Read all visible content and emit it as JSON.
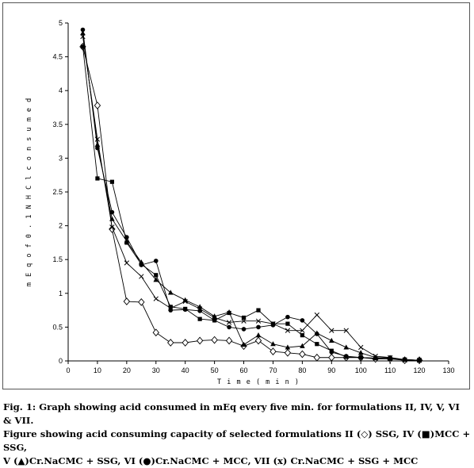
{
  "chart_data": {
    "type": "line",
    "title": "",
    "xlabel": "Time (min)",
    "ylabel": "mEq of 0.1 N HCl consumed",
    "xlim": [
      0,
      130
    ],
    "ylim": [
      0,
      5
    ],
    "x_ticks": [
      0,
      10,
      20,
      30,
      40,
      50,
      60,
      70,
      80,
      90,
      100,
      110,
      120,
      130
    ],
    "y_ticks": [
      0,
      0.5,
      1,
      1.5,
      2,
      2.5,
      3,
      3.5,
      4,
      4.5,
      5
    ],
    "x": [
      5,
      10,
      15,
      20,
      25,
      30,
      35,
      40,
      45,
      50,
      55,
      60,
      65,
      70,
      75,
      80,
      85,
      90,
      95,
      100,
      105,
      110,
      115,
      120
    ],
    "grid": false,
    "legend": "none",
    "series": [
      {
        "name": "II",
        "marker": "diamond-open",
        "values": [
          4.65,
          3.78,
          1.95,
          0.88,
          0.87,
          0.42,
          0.27,
          0.27,
          0.3,
          0.31,
          0.3,
          0.22,
          0.3,
          0.14,
          0.12,
          0.1,
          0.05,
          0.05,
          0.05,
          0.05,
          0.03,
          0.03,
          0.01,
          0.01
        ]
      },
      {
        "name": "IV",
        "marker": "square",
        "values": [
          4.65,
          2.7,
          2.65,
          1.75,
          1.43,
          1.27,
          0.8,
          0.77,
          0.62,
          0.6,
          0.71,
          0.64,
          0.75,
          0.55,
          0.55,
          0.38,
          0.25,
          0.15,
          0.06,
          0.05,
          0.04,
          0.03,
          0.02,
          0.01
        ]
      },
      {
        "name": "V",
        "marker": "triangle",
        "values": [
          4.85,
          3.2,
          2.1,
          1.77,
          1.46,
          1.2,
          1.01,
          0.9,
          0.8,
          0.66,
          0.72,
          0.24,
          0.38,
          0.25,
          0.2,
          0.22,
          0.41,
          0.3,
          0.2,
          0.12,
          0.05,
          0.04,
          0.02,
          0.01
        ]
      },
      {
        "name": "VI",
        "marker": "circle",
        "values": [
          4.9,
          3.15,
          2.2,
          1.83,
          1.42,
          1.48,
          0.75,
          0.76,
          0.74,
          0.6,
          0.5,
          0.47,
          0.5,
          0.53,
          0.65,
          0.6,
          0.4,
          0.13,
          0.07,
          0.05,
          0.04,
          0.05,
          0.02,
          0.01
        ]
      },
      {
        "name": "VII",
        "marker": "x",
        "values": [
          4.8,
          3.28,
          1.98,
          1.45,
          1.25,
          0.92,
          0.78,
          0.88,
          0.77,
          0.64,
          0.57,
          0.59,
          0.59,
          0.55,
          0.45,
          0.45,
          0.68,
          0.45,
          0.45,
          0.2,
          0.07,
          0.05,
          0.01,
          0.01
        ]
      }
    ]
  },
  "axis_labels": {
    "x": "T i m e  ( m i n )",
    "y": "m E q   o f   0 . 1   N   H C l  c o n s u m e d"
  },
  "caption": {
    "line1": "Fig. 1: Graph showing acid consumed in mEq every five min. for formulations II, IV, V, VI & VII.",
    "line2": "Figure showing acid consuming capacity of selected formulations II (◇) SSG, IV (■)MCC + SSG,",
    "line3": "V (▲)Cr.NaCMC + SSG, VI (●)Cr.NaCMC + MCC, VII (x) Cr.NaCMC + SSG + MCC"
  }
}
